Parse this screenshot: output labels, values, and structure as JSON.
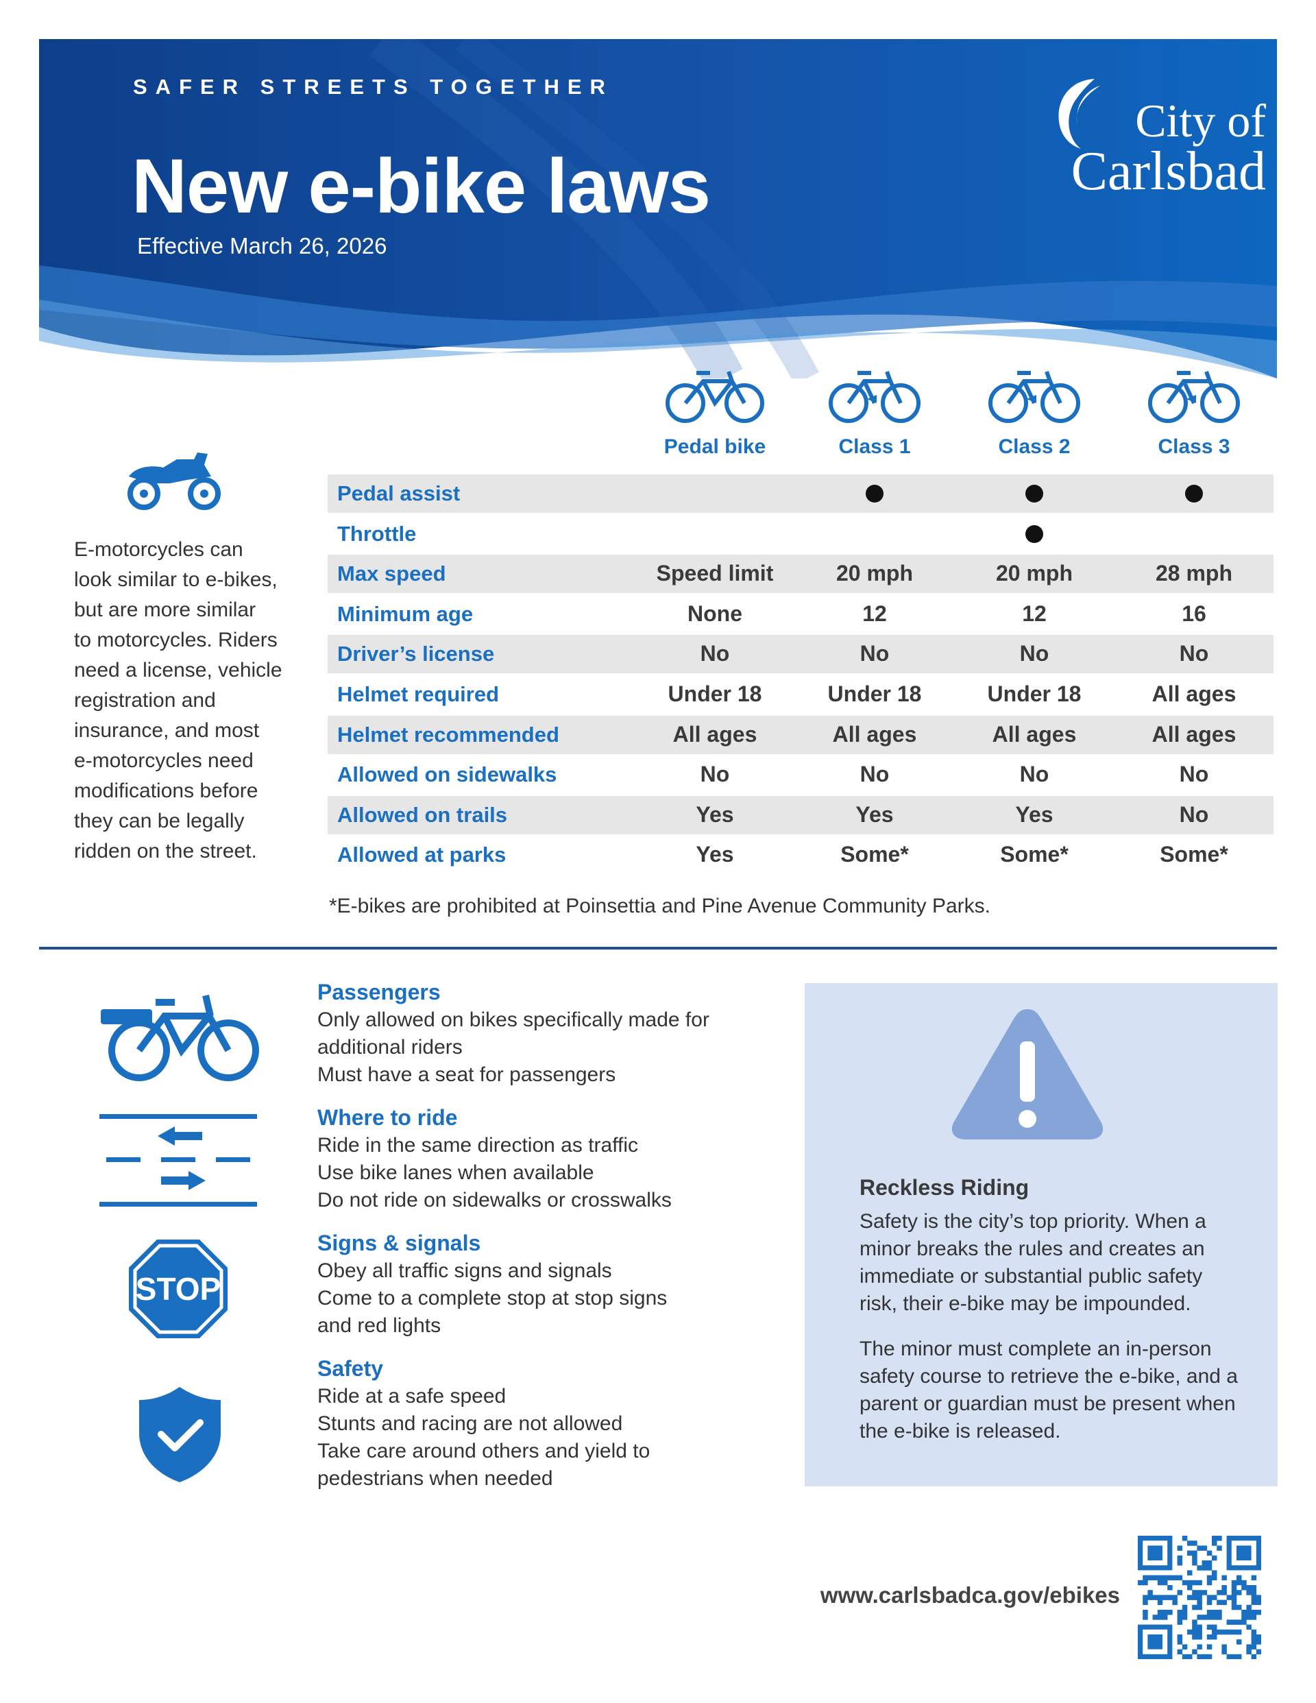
{
  "header": {
    "tagline": "SAFER STREETS TOGETHER",
    "title": "New e-bike laws",
    "effective": "Effective March 26, 2026",
    "logo": {
      "line1": "City of",
      "line2": "Carlsbad"
    }
  },
  "table": {
    "columns": [
      "Pedal bike",
      "Class 1",
      "Class 2",
      "Class 3"
    ],
    "rows": [
      {
        "label": "Pedal assist",
        "values": [
          "",
          "●",
          "●",
          "●"
        ]
      },
      {
        "label": "Throttle",
        "values": [
          "",
          "",
          "●",
          ""
        ]
      },
      {
        "label": "Max speed",
        "values": [
          "Speed limit",
          "20 mph",
          "20 mph",
          "28 mph"
        ]
      },
      {
        "label": "Minimum age",
        "values": [
          "None",
          "12",
          "12",
          "16"
        ]
      },
      {
        "label": "Driver’s license",
        "values": [
          "No",
          "No",
          "No",
          "No"
        ]
      },
      {
        "label": "Helmet required",
        "values": [
          "Under 18",
          "Under 18",
          "Under 18",
          "All ages"
        ]
      },
      {
        "label": "Helmet recommended",
        "values": [
          "All ages",
          "All ages",
          "All ages",
          "All ages"
        ]
      },
      {
        "label": "Allowed on sidewalks",
        "values": [
          "No",
          "No",
          "No",
          "No"
        ]
      },
      {
        "label": "Allowed on trails",
        "values": [
          "Yes",
          "Yes",
          "Yes",
          "No"
        ]
      },
      {
        "label": "Allowed at parks",
        "values": [
          "Yes",
          "Some*",
          "Some*",
          "Some*"
        ]
      }
    ],
    "footnote": "*E-bikes are prohibited at Poinsettia and Pine Avenue Community Parks."
  },
  "motorcycle": {
    "lines": [
      "E-motorcycles can",
      "look similar to e-bikes,",
      "but are more similar",
      "to motorcycles. Riders",
      "need a license, vehicle",
      "registration and",
      "insurance, and most",
      "e-motorcycles need",
      "modifications before",
      "they can be legally",
      "ridden on the street."
    ]
  },
  "rules": [
    {
      "title": "Passengers",
      "lines": [
        "Only allowed on bikes specifically made for",
        "additional riders",
        "Must have a seat for passengers"
      ]
    },
    {
      "title": "Where to ride",
      "lines": [
        "Ride in the same direction as traffic",
        "Use bike lanes when available",
        "Do not ride on sidewalks or crosswalks"
      ]
    },
    {
      "title": "Signs & signals",
      "lines": [
        "Obey all traffic signs and signals",
        "Come to a complete stop at stop signs",
        "and red lights"
      ]
    },
    {
      "title": "Safety",
      "lines": [
        "Ride at a safe speed",
        "Stunts and racing are not allowed",
        "Take care around others and yield to",
        "pedestrians when needed"
      ]
    }
  ],
  "stop_sign": "STOP",
  "reckless": {
    "title": "Reckless Riding",
    "p1": "Safety is the city’s top priority. When a minor breaks the rules and creates an immediate or substantial public safety risk, their e-bike may be impounded.",
    "p2": "The minor must complete an in-person safety course to retrieve the e-bike, and a parent or guardian must be present when the e-bike is released."
  },
  "footer": {
    "url": "www.carlsbadca.gov/ebikes"
  },
  "colors": {
    "brand_blue": "#1a6fc1",
    "header_blue": "#0f4c9c",
    "row_shade": "#e6e6e6",
    "box_bg": "#d6e1f3"
  }
}
